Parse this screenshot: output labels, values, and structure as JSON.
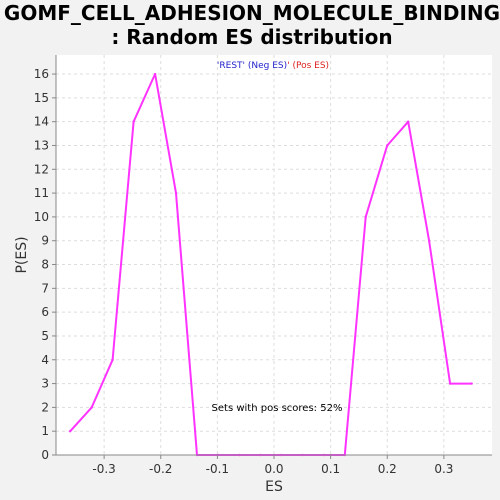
{
  "chart_data": {
    "type": "line",
    "title_line1": "GOMF_CELL_ADHESION_MOLECULE_BINDING",
    "title_line2": ": Random ES distribution",
    "xlabel": "ES",
    "ylabel": "P(ES)",
    "xlim": [
      -0.385,
      0.385
    ],
    "ylim": [
      0,
      16.8
    ],
    "xticks": [
      "-0.3",
      "-0.2",
      "-0.1",
      "0.0",
      "0.1",
      "0.2",
      "0.3"
    ],
    "xtick_values": [
      -0.3,
      -0.2,
      -0.1,
      0.0,
      0.1,
      0.2,
      0.3
    ],
    "yticks": [
      "0",
      "1",
      "2",
      "3",
      "4",
      "5",
      "6",
      "7",
      "8",
      "9",
      "10",
      "11",
      "12",
      "13",
      "14",
      "15",
      "16"
    ],
    "ytick_values": [
      0,
      1,
      2,
      3,
      4,
      5,
      6,
      7,
      8,
      9,
      10,
      11,
      12,
      13,
      14,
      15,
      16
    ],
    "grid": true,
    "legend": {
      "placement": "top-center",
      "neg_label": "'REST' (Neg ES)",
      "separator": "'",
      "pos_label": " (Pos ES)",
      "neg_color": "#2222cc",
      "pos_color": "#dd2222"
    },
    "annotation": "Sets with pos scores: 52%",
    "series": [
      {
        "color": "#ff33ff",
        "x": [
          -0.36,
          -0.322,
          -0.285,
          -0.248,
          -0.21,
          -0.173,
          -0.136,
          -0.099,
          -0.061,
          -0.024,
          0.013,
          0.05,
          0.088,
          0.125,
          0.162,
          0.2,
          0.237,
          0.274,
          0.311,
          0.349
        ],
        "y": [
          1,
          2,
          4,
          14,
          16,
          11,
          0,
          0,
          0,
          0,
          0,
          0,
          0,
          0,
          10,
          13,
          14,
          9,
          3,
          3
        ]
      }
    ]
  }
}
